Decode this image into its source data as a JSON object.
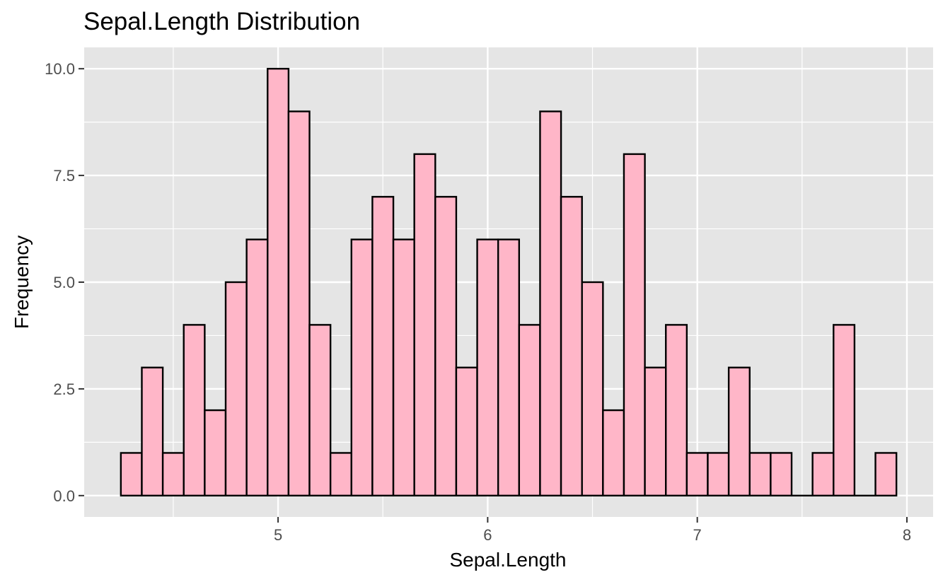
{
  "chart_data": {
    "type": "bar",
    "subtype": "histogram",
    "title": "Sepal.Length Distribution",
    "xlabel": "Sepal.Length",
    "ylabel": "Frequency",
    "xlim": [
      4.075,
      8.125
    ],
    "ylim": [
      -0.5,
      10.5
    ],
    "x_ticks": [
      5,
      6,
      7,
      8
    ],
    "x_tick_labels": [
      "5",
      "6",
      "7",
      "8"
    ],
    "y_ticks": [
      0,
      2.5,
      5,
      7.5,
      10
    ],
    "y_tick_labels": [
      "0.0",
      "2.5",
      "5.0",
      "7.5",
      "10.0"
    ],
    "bin_width": 0.1,
    "bins": [
      {
        "center": 4.3,
        "count": 1
      },
      {
        "center": 4.4,
        "count": 3
      },
      {
        "center": 4.5,
        "count": 1
      },
      {
        "center": 4.6,
        "count": 4
      },
      {
        "center": 4.7,
        "count": 2
      },
      {
        "center": 4.8,
        "count": 5
      },
      {
        "center": 4.9,
        "count": 6
      },
      {
        "center": 5.0,
        "count": 10
      },
      {
        "center": 5.1,
        "count": 9
      },
      {
        "center": 5.2,
        "count": 4
      },
      {
        "center": 5.3,
        "count": 1
      },
      {
        "center": 5.4,
        "count": 6
      },
      {
        "center": 5.5,
        "count": 7
      },
      {
        "center": 5.6,
        "count": 6
      },
      {
        "center": 5.7,
        "count": 8
      },
      {
        "center": 5.8,
        "count": 7
      },
      {
        "center": 5.9,
        "count": 3
      },
      {
        "center": 6.0,
        "count": 6
      },
      {
        "center": 6.1,
        "count": 6
      },
      {
        "center": 6.2,
        "count": 4
      },
      {
        "center": 6.3,
        "count": 9
      },
      {
        "center": 6.4,
        "count": 7
      },
      {
        "center": 6.5,
        "count": 5
      },
      {
        "center": 6.6,
        "count": 2
      },
      {
        "center": 6.7,
        "count": 8
      },
      {
        "center": 6.8,
        "count": 3
      },
      {
        "center": 6.9,
        "count": 4
      },
      {
        "center": 7.0,
        "count": 1
      },
      {
        "center": 7.1,
        "count": 1
      },
      {
        "center": 7.2,
        "count": 3
      },
      {
        "center": 7.3,
        "count": 1
      },
      {
        "center": 7.4,
        "count": 1
      },
      {
        "center": 7.5,
        "count": 0
      },
      {
        "center": 7.6,
        "count": 1
      },
      {
        "center": 7.7,
        "count": 4
      },
      {
        "center": 7.8,
        "count": 0
      },
      {
        "center": 7.9,
        "count": 1
      }
    ],
    "grid": true,
    "colors": {
      "bar_fill": "#ffb6c8",
      "bar_outline": "#000000",
      "panel_background": "#e5e5e5",
      "grid_line": "#ffffff"
    }
  }
}
